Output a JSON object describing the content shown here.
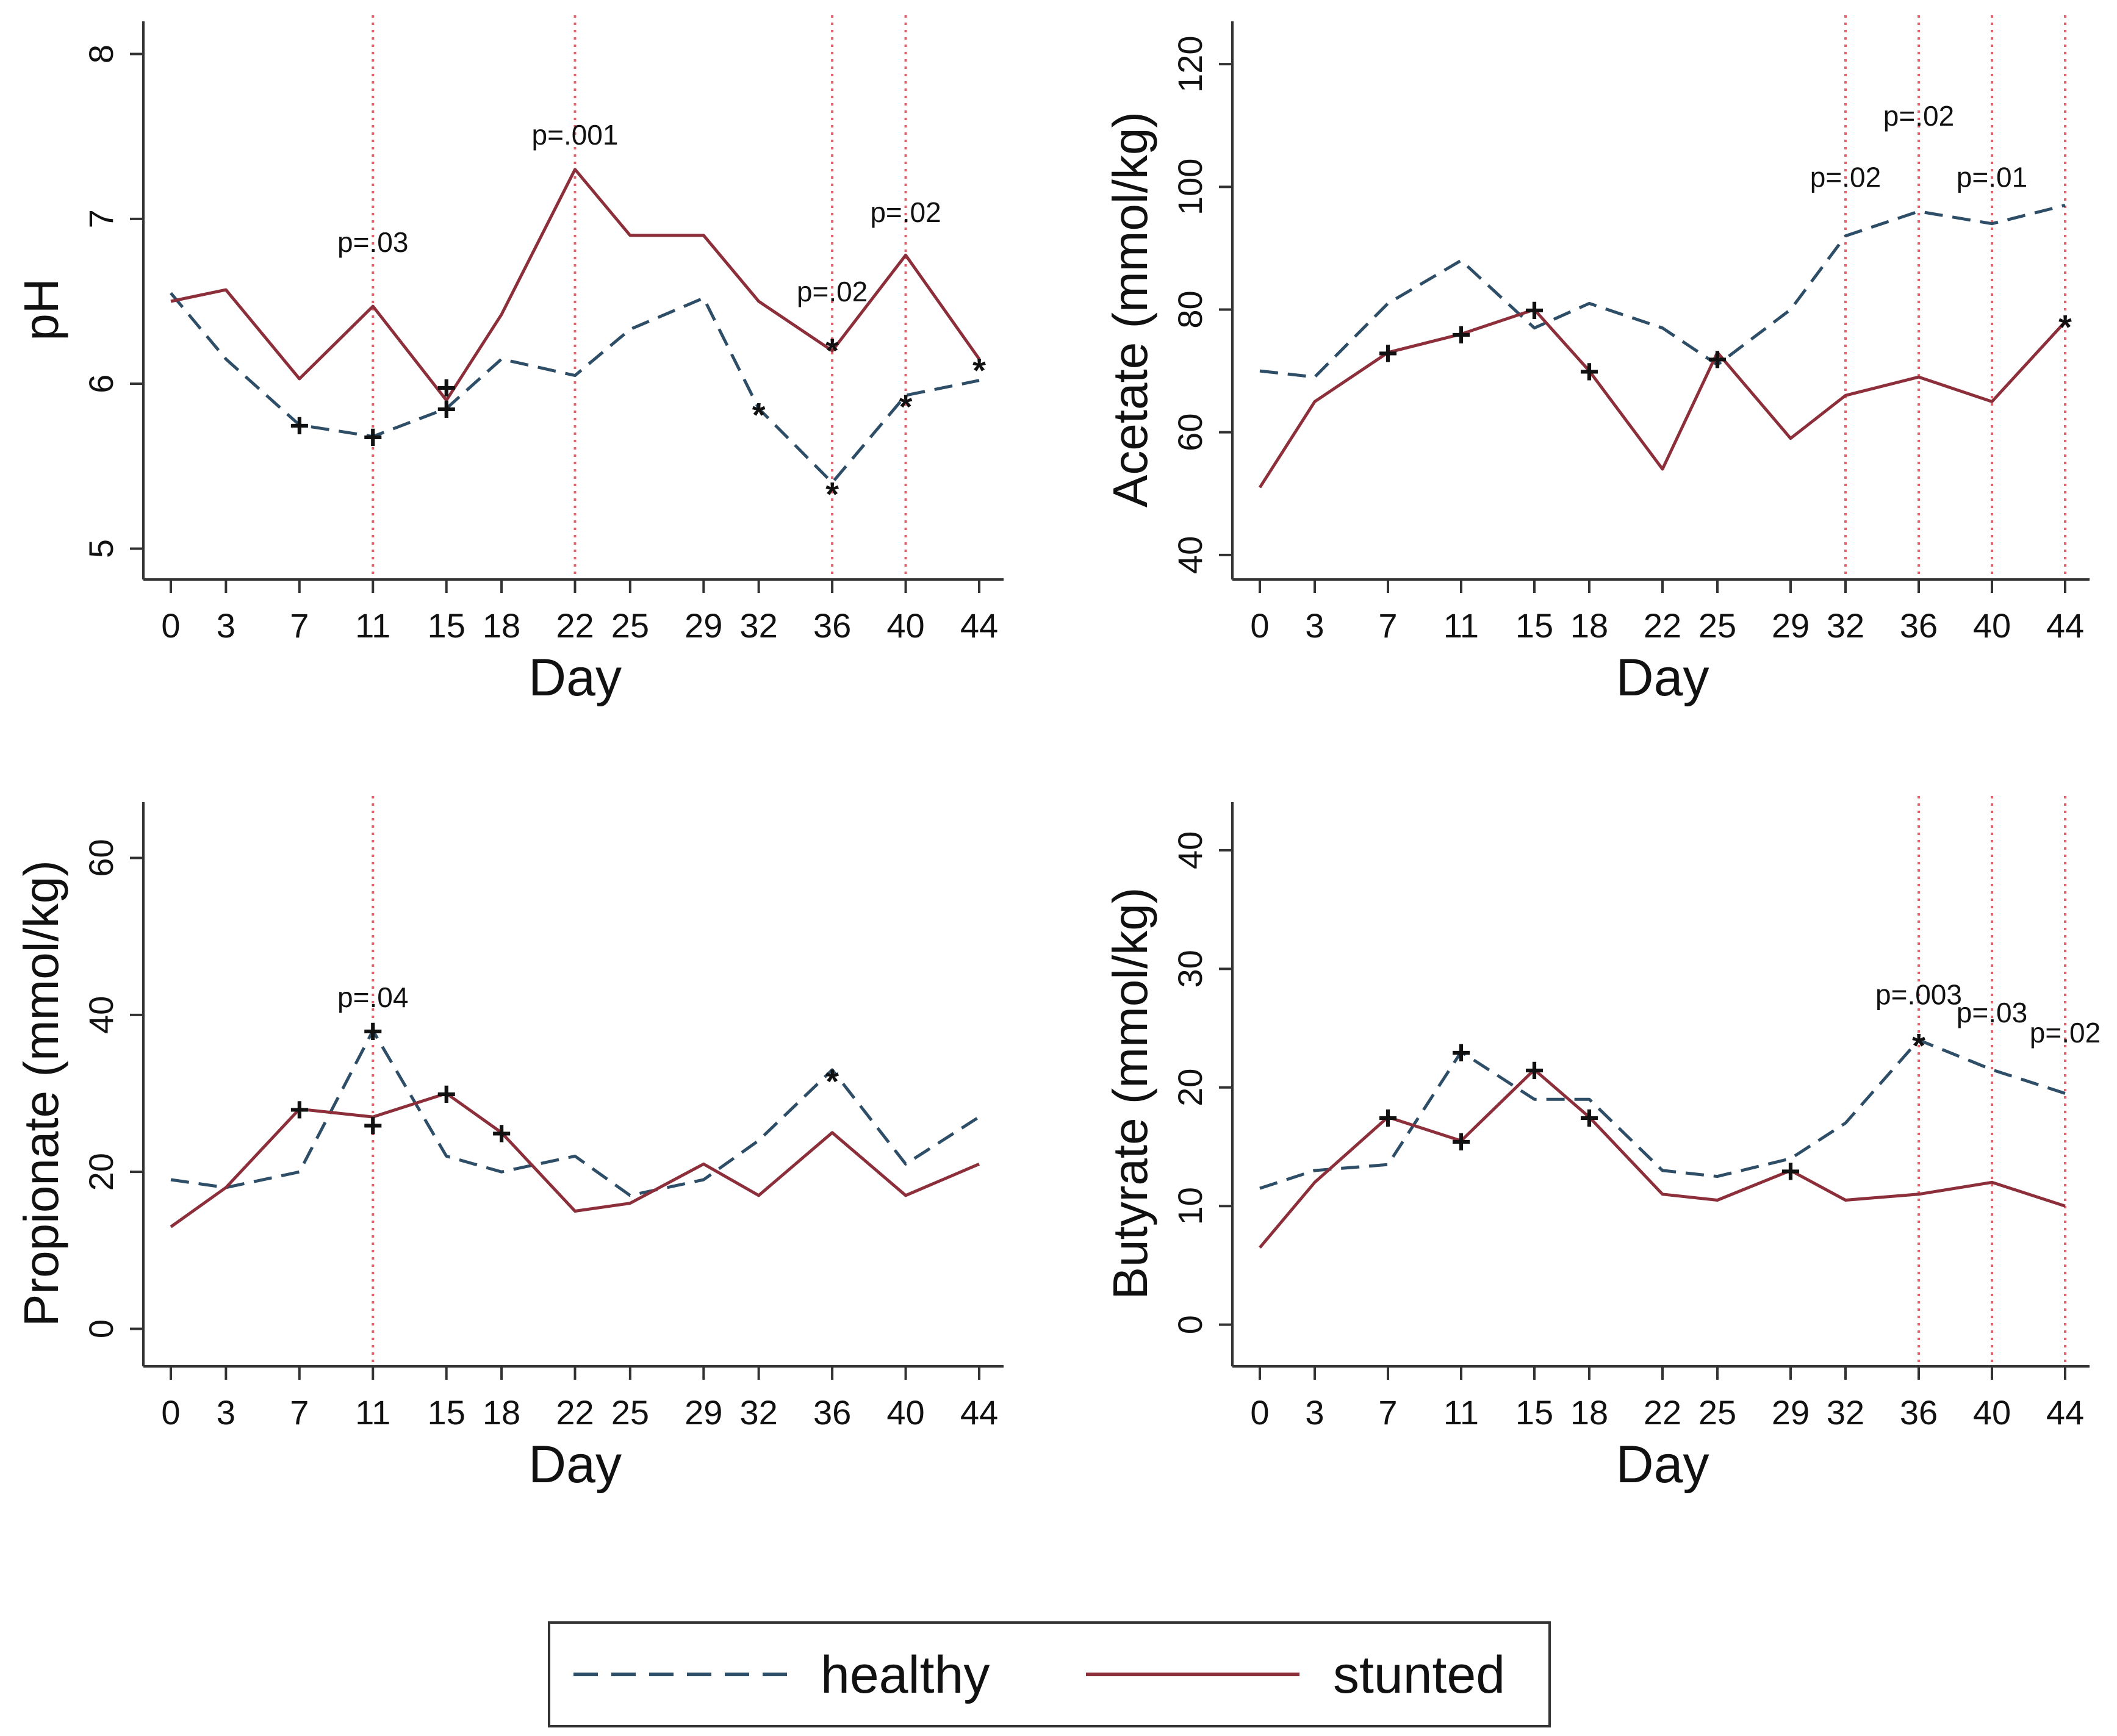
{
  "colors": {
    "healthy": "#2e4e68",
    "stunted": "#8c2f3a",
    "significance_line": "#e8606a",
    "axis": "#333333"
  },
  "legend": {
    "items": [
      {
        "label": "healthy",
        "style": "dashed",
        "color": "#2e4e68"
      },
      {
        "label": "stunted",
        "style": "solid",
        "color": "#8c2f3a"
      }
    ]
  },
  "chart_data": [
    {
      "type": "line",
      "ylabel": "pH",
      "xlabel": "Day",
      "x": [
        0,
        3,
        7,
        11,
        15,
        18,
        22,
        25,
        29,
        32,
        36,
        40,
        44
      ],
      "xticks": [
        0,
        3,
        7,
        11,
        15,
        18,
        22,
        25,
        29,
        32,
        36,
        40,
        44
      ],
      "ylim": [
        4.85,
        8.05
      ],
      "yticks": [
        5,
        6,
        7,
        8
      ],
      "series": [
        {
          "name": "healthy",
          "values": [
            6.55,
            6.15,
            5.75,
            5.68,
            5.85,
            6.15,
            6.05,
            6.33,
            6.52,
            5.85,
            5.4,
            5.93,
            6.02
          ]
        },
        {
          "name": "stunted",
          "values": [
            6.5,
            6.57,
            6.03,
            6.47,
            5.9,
            6.42,
            7.3,
            6.9,
            6.9,
            6.5,
            6.2,
            6.78,
            6.15
          ]
        }
      ],
      "significance_days": [
        11,
        22,
        36,
        40
      ],
      "annotations": [
        {
          "text": "p=.03",
          "x": 11,
          "y": 6.8
        },
        {
          "text": "p=.001",
          "x": 22,
          "y": 7.45
        },
        {
          "text": "p=.02",
          "x": 36,
          "y": 6.5
        },
        {
          "text": "p=.02",
          "x": 40,
          "y": 6.98
        }
      ],
      "markers": [
        {
          "symbol": "+",
          "x": 7,
          "y": 5.75
        },
        {
          "symbol": "+",
          "x": 11,
          "y": 5.68
        },
        {
          "symbol": "+",
          "x": 15,
          "y": 5.85
        },
        {
          "symbol": "+",
          "x": 15,
          "y": 5.98
        },
        {
          "symbol": "*",
          "x": 32,
          "y": 5.88
        },
        {
          "symbol": "*",
          "x": 36,
          "y": 6.27
        },
        {
          "symbol": "*",
          "x": 36,
          "y": 5.4
        },
        {
          "symbol": "*",
          "x": 40,
          "y": 5.93
        },
        {
          "symbol": "*",
          "x": 44,
          "y": 6.15
        }
      ]
    },
    {
      "type": "line",
      "ylabel": "Acetate (mmol/kg)",
      "xlabel": "Day",
      "x": [
        0,
        3,
        7,
        11,
        15,
        18,
        22,
        25,
        29,
        32,
        36,
        40,
        44
      ],
      "xticks": [
        0,
        3,
        7,
        11,
        15,
        18,
        22,
        25,
        29,
        32,
        36,
        40,
        44
      ],
      "ylim": [
        37,
        123
      ],
      "yticks": [
        40,
        60,
        80,
        100,
        120
      ],
      "series": [
        {
          "name": "healthy",
          "values": [
            70,
            69,
            81,
            88,
            77,
            81,
            77,
            71,
            80,
            92,
            96,
            94,
            97
          ]
        },
        {
          "name": "stunted",
          "values": [
            51,
            65,
            73,
            76,
            80,
            70,
            54,
            73,
            59,
            66,
            69,
            65,
            78
          ]
        }
      ],
      "significance_days": [
        32,
        36,
        40,
        44
      ],
      "annotations": [
        {
          "text": "p=.02",
          "x": 32,
          "y": 100
        },
        {
          "text": "p=.02",
          "x": 36,
          "y": 110
        },
        {
          "text": "p=.01",
          "x": 40,
          "y": 100
        }
      ],
      "markers": [
        {
          "symbol": "+",
          "x": 7,
          "y": 73
        },
        {
          "symbol": "+",
          "x": 11,
          "y": 76
        },
        {
          "symbol": "+",
          "x": 15,
          "y": 80
        },
        {
          "symbol": "+",
          "x": 18,
          "y": 70
        },
        {
          "symbol": "+",
          "x": 25,
          "y": 72
        },
        {
          "symbol": "*",
          "x": 44,
          "y": 79
        }
      ]
    },
    {
      "type": "line",
      "ylabel": "Propionate (mmol/kg)",
      "xlabel": "Day",
      "x": [
        0,
        3,
        7,
        11,
        15,
        18,
        22,
        25,
        29,
        32,
        36,
        40,
        44
      ],
      "xticks": [
        0,
        3,
        7,
        11,
        15,
        18,
        22,
        25,
        29,
        32,
        36,
        40,
        44
      ],
      "ylim": [
        -4,
        64
      ],
      "yticks": [
        0,
        20,
        40,
        60
      ],
      "series": [
        {
          "name": "healthy",
          "values": [
            19,
            18,
            20,
            38,
            22,
            20,
            22,
            17,
            19,
            24,
            33,
            21,
            27
          ]
        },
        {
          "name": "stunted",
          "values": [
            13,
            18,
            28,
            27,
            30,
            25,
            15,
            16,
            21,
            17,
            25,
            17,
            21
          ]
        }
      ],
      "significance_days": [
        11
      ],
      "annotations": [
        {
          "text": "p=.04",
          "x": 11,
          "y": 41
        }
      ],
      "markers": [
        {
          "symbol": "+",
          "x": 7,
          "y": 28
        },
        {
          "symbol": "+",
          "x": 11,
          "y": 38
        },
        {
          "symbol": "+",
          "x": 11,
          "y": 26
        },
        {
          "symbol": "+",
          "x": 15,
          "y": 30
        },
        {
          "symbol": "+",
          "x": 18,
          "y": 25
        },
        {
          "symbol": "*",
          "x": 36,
          "y": 33
        }
      ]
    },
    {
      "type": "line",
      "ylabel": "Butyrate (mmol/kg)",
      "xlabel": "Day",
      "x": [
        0,
        3,
        7,
        11,
        15,
        18,
        22,
        25,
        29,
        32,
        36,
        40,
        44
      ],
      "xticks": [
        0,
        3,
        7,
        11,
        15,
        18,
        22,
        25,
        29,
        32,
        36,
        40,
        44
      ],
      "ylim": [
        -3,
        42
      ],
      "yticks": [
        0,
        10,
        20,
        30,
        40
      ],
      "series": [
        {
          "name": "healthy",
          "values": [
            11.5,
            13,
            13.5,
            23,
            19,
            19,
            13,
            12.5,
            14,
            17,
            24,
            21.5,
            19.5
          ]
        },
        {
          "name": "stunted",
          "values": [
            6.5,
            12,
            17.5,
            15.5,
            21.5,
            17.5,
            11,
            10.5,
            13,
            10.5,
            11,
            12,
            10
          ]
        }
      ],
      "significance_days": [
        36,
        40,
        44
      ],
      "annotations": [
        {
          "text": "p=.003",
          "x": 36,
          "y": 27
        },
        {
          "text": "p=.03",
          "x": 40,
          "y": 25.5
        },
        {
          "text": "p=.02",
          "x": 44,
          "y": 23.8
        }
      ],
      "markers": [
        {
          "symbol": "+",
          "x": 7,
          "y": 17.5
        },
        {
          "symbol": "+",
          "x": 11,
          "y": 23
        },
        {
          "symbol": "+",
          "x": 11,
          "y": 15.5
        },
        {
          "symbol": "+",
          "x": 15,
          "y": 21.5
        },
        {
          "symbol": "+",
          "x": 18,
          "y": 17.5
        },
        {
          "symbol": "+",
          "x": 29,
          "y": 13
        },
        {
          "symbol": "*",
          "x": 36,
          "y": 24.5
        }
      ]
    }
  ]
}
